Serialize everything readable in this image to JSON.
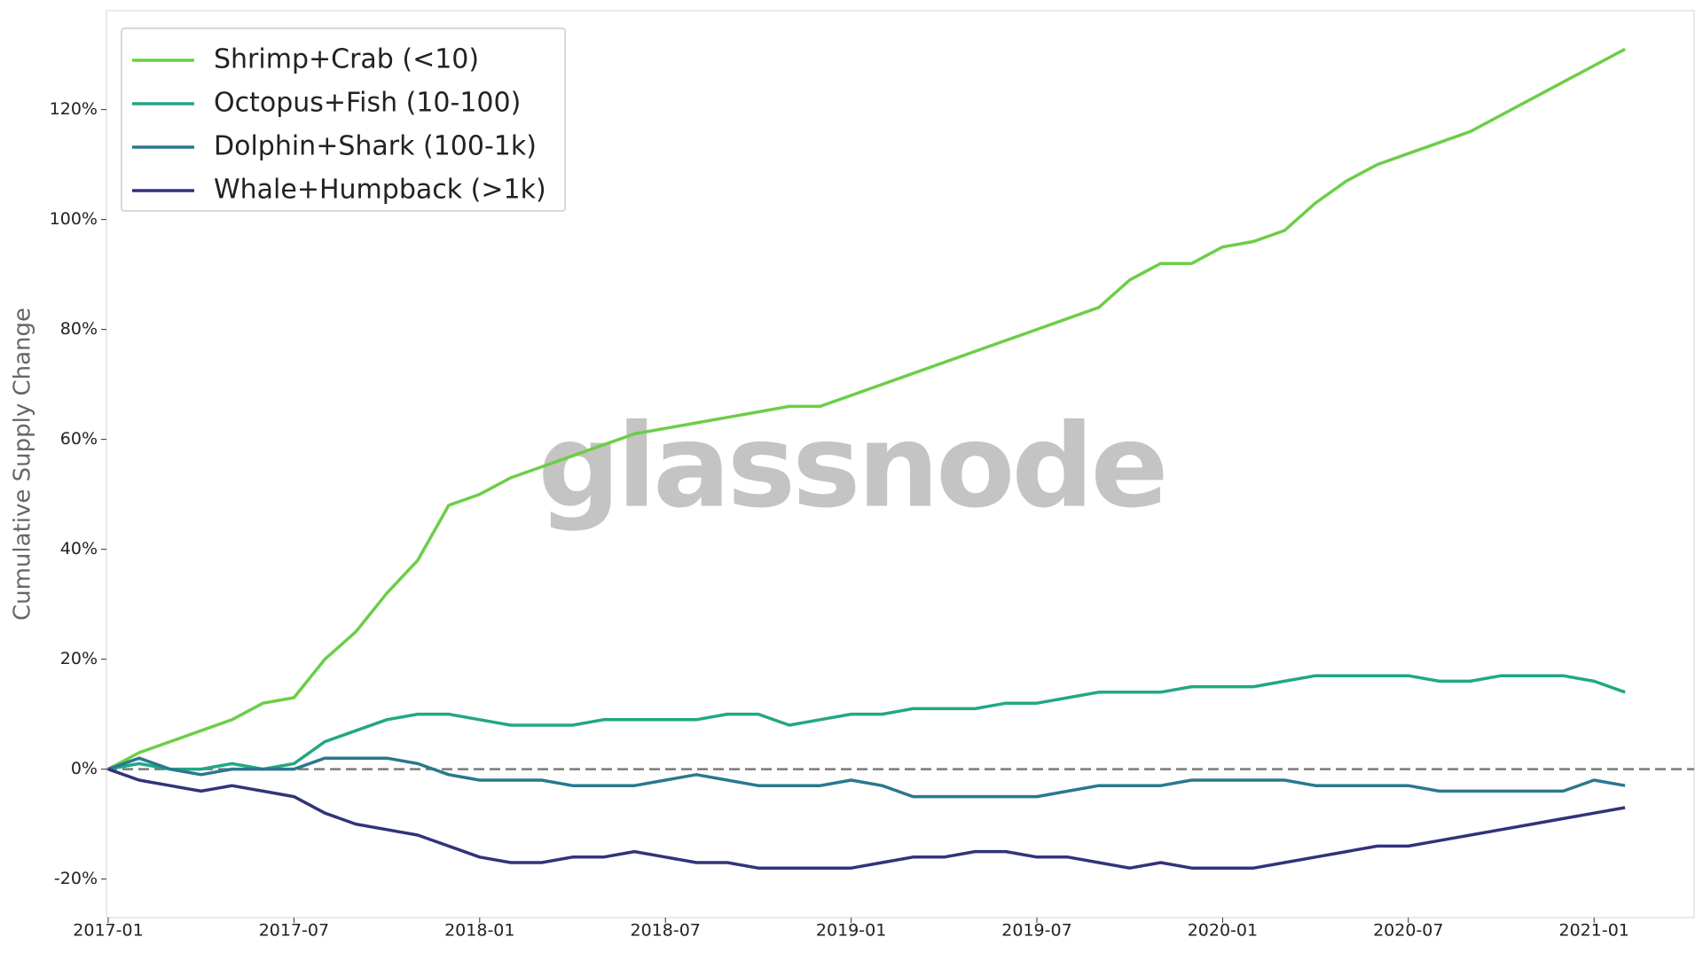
{
  "chart_data": {
    "type": "line",
    "y_label": "Cumulative Supply Change",
    "watermark": "glassnode",
    "legend": "upper left",
    "grid": false,
    "reference_line": {
      "value": 0,
      "style": "dashed",
      "color": "#7a7a7a"
    },
    "x": [
      "2017-01",
      "2017-02",
      "2017-03",
      "2017-04",
      "2017-05",
      "2017-06",
      "2017-07",
      "2017-08",
      "2017-09",
      "2017-10",
      "2017-11",
      "2017-12",
      "2018-01",
      "2018-02",
      "2018-03",
      "2018-04",
      "2018-05",
      "2018-06",
      "2018-07",
      "2018-08",
      "2018-09",
      "2018-10",
      "2018-11",
      "2018-12",
      "2019-01",
      "2019-02",
      "2019-03",
      "2019-04",
      "2019-05",
      "2019-06",
      "2019-07",
      "2019-08",
      "2019-09",
      "2019-10",
      "2019-11",
      "2019-12",
      "2020-01",
      "2020-02",
      "2020-03",
      "2020-04",
      "2020-05",
      "2020-06",
      "2020-07",
      "2020-08",
      "2020-09",
      "2020-10",
      "2020-11",
      "2020-12",
      "2021-01",
      "2021-02"
    ],
    "xticks": [
      "2017-01",
      "2017-07",
      "2018-01",
      "2018-07",
      "2019-01",
      "2019-07",
      "2020-01",
      "2020-07",
      "2021-01"
    ],
    "ylim": [
      -27,
      138
    ],
    "yticks": [
      {
        "value": -20,
        "label": "-20%"
      },
      {
        "value": 0,
        "label": "0%"
      },
      {
        "value": 20,
        "label": "20%"
      },
      {
        "value": 40,
        "label": "40%"
      },
      {
        "value": 60,
        "label": "60%"
      },
      {
        "value": 80,
        "label": "80%"
      },
      {
        "value": 100,
        "label": "100%"
      },
      {
        "value": 120,
        "label": "120%"
      }
    ],
    "series": [
      {
        "name": "Shrimp+Crab (<10)",
        "color": "#6cce47",
        "values": [
          0,
          3,
          5,
          7,
          9,
          12,
          13,
          20,
          25,
          32,
          38,
          48,
          50,
          53,
          55,
          57,
          59,
          61,
          62,
          63,
          64,
          65,
          66,
          66,
          68,
          70,
          72,
          74,
          76,
          78,
          80,
          82,
          84,
          89,
          92,
          92,
          95,
          96,
          98,
          103,
          107,
          110,
          112,
          114,
          116,
          119,
          122,
          125,
          128,
          131
        ]
      },
      {
        "name": "Octopus+Fish (10-100)",
        "color": "#22a784",
        "values": [
          0,
          1,
          0,
          0,
          1,
          0,
          1,
          5,
          7,
          9,
          10,
          10,
          9,
          8,
          8,
          8,
          9,
          9,
          9,
          9,
          10,
          10,
          8,
          9,
          10,
          10,
          11,
          11,
          11,
          12,
          12,
          13,
          14,
          14,
          14,
          15,
          15,
          15,
          16,
          17,
          17,
          17,
          17,
          16,
          16,
          17,
          17,
          17,
          16,
          14
        ]
      },
      {
        "name": "Dolphin+Shark (100-1k)",
        "color": "#2a788e",
        "values": [
          0,
          2,
          0,
          -1,
          0,
          0,
          0,
          2,
          2,
          2,
          1,
          -1,
          -2,
          -2,
          -2,
          -3,
          -3,
          -3,
          -2,
          -1,
          -2,
          -3,
          -3,
          -3,
          -2,
          -3,
          -5,
          -5,
          -5,
          -5,
          -5,
          -4,
          -3,
          -3,
          -3,
          -2,
          -2,
          -2,
          -2,
          -3,
          -3,
          -3,
          -3,
          -4,
          -4,
          -4,
          -4,
          -4,
          -2,
          -3
        ]
      },
      {
        "name": "Whale+Humpback (>1k)",
        "color": "#32327c",
        "values": [
          0,
          -2,
          -3,
          -4,
          -3,
          -4,
          -5,
          -8,
          -10,
          -11,
          -12,
          -14,
          -16,
          -17,
          -17,
          -16,
          -16,
          -15,
          -16,
          -17,
          -17,
          -18,
          -18,
          -18,
          -18,
          -17,
          -16,
          -16,
          -15,
          -15,
          -16,
          -16,
          -17,
          -18,
          -17,
          -18,
          -18,
          -18,
          -17,
          -16,
          -15,
          -14,
          -14,
          -13,
          -12,
          -11,
          -10,
          -9,
          -8,
          -7
        ]
      }
    ]
  }
}
